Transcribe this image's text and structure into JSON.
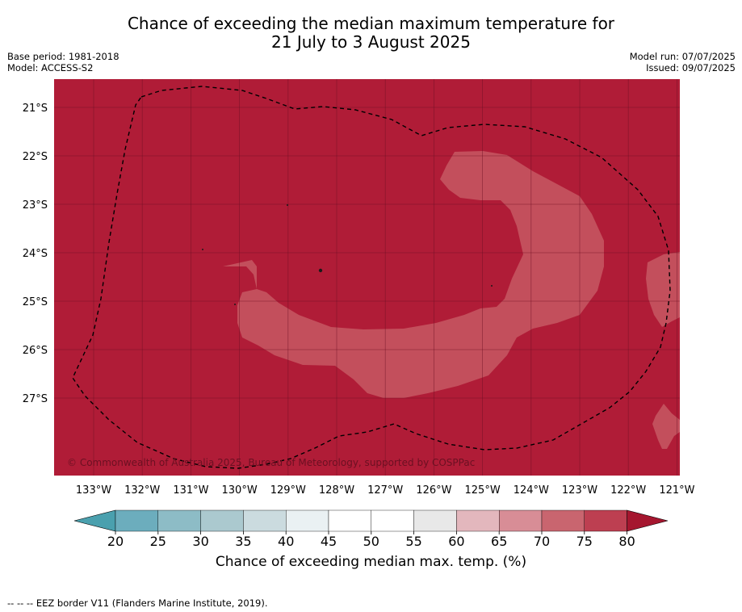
{
  "title_line1": "Chance of exceeding the median maximum temperature for",
  "title_line2": "21 July to 3 August 2025",
  "left_info": [
    "Base period: 1981-2018",
    "Model: ACCESS-S2"
  ],
  "right_info": [
    "Model run: 07/07/2025",
    "Issued: 09/07/2025"
  ],
  "map": {
    "lon_labels": [
      "133°W",
      "132°W",
      "131°W",
      "130°W",
      "129°W",
      "128°W",
      "127°W",
      "126°W",
      "125°W",
      "124°W",
      "123°W",
      "122°W",
      "121°W"
    ],
    "lat_labels": [
      "21°S",
      "22°S",
      "23°S",
      "24°S",
      "25°S",
      "26°S",
      "27°S"
    ],
    "copyright": "© Commonwealth of Australia 2025, Bureau of Meteorology, supported by COSPPac",
    "background_color": "#b01c37",
    "region_color": "#c34f5c"
  },
  "colorbar": {
    "ticks": [
      "20",
      "25",
      "30",
      "35",
      "40",
      "45",
      "50",
      "55",
      "60",
      "65",
      "70",
      "75",
      "80"
    ],
    "segment_colors": [
      "#6cadbd",
      "#8dbcc6",
      "#abc9cf",
      "#cbdbdf",
      "#eaf1f3",
      "#ffffff",
      "#ffffff",
      "#e8e8e8",
      "#e3b7bd",
      "#d88d96",
      "#c9656f",
      "#bd3f51"
    ],
    "low_color": "#4aa0ae",
    "high_color": "#a5162f",
    "label": "Chance of exceeding median max. temp. (%)"
  },
  "footnote": "--  --  -- EEZ border V11 (Flanders Marine Institute, 2019)."
}
